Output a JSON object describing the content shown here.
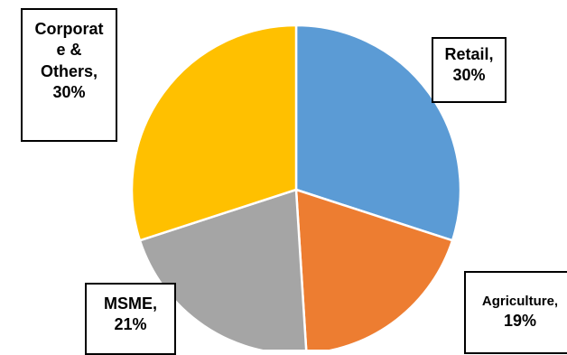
{
  "chart_data": {
    "type": "pie",
    "title": "",
    "slices": [
      {
        "category": "Retail",
        "value": 30,
        "color": "#5b9bd5",
        "label_line1": "Retail,",
        "label_line2": "30%"
      },
      {
        "category": "Agriculture",
        "value": 19,
        "color": "#ed7d31",
        "label_line1": "Agriculture,",
        "label_line2": "19%"
      },
      {
        "category": "MSME",
        "value": 21,
        "color": "#a5a5a5",
        "label_line1": "MSME,",
        "label_line2": "21%"
      },
      {
        "category": "Corporate & Others",
        "value": 30,
        "color": "#ffc000",
        "label_line1": "Corporat",
        "label_line2": "e &",
        "label_line3": "Others,",
        "label_line4": "30%"
      }
    ],
    "legend": "none",
    "data_labels": "category-and-percent"
  }
}
